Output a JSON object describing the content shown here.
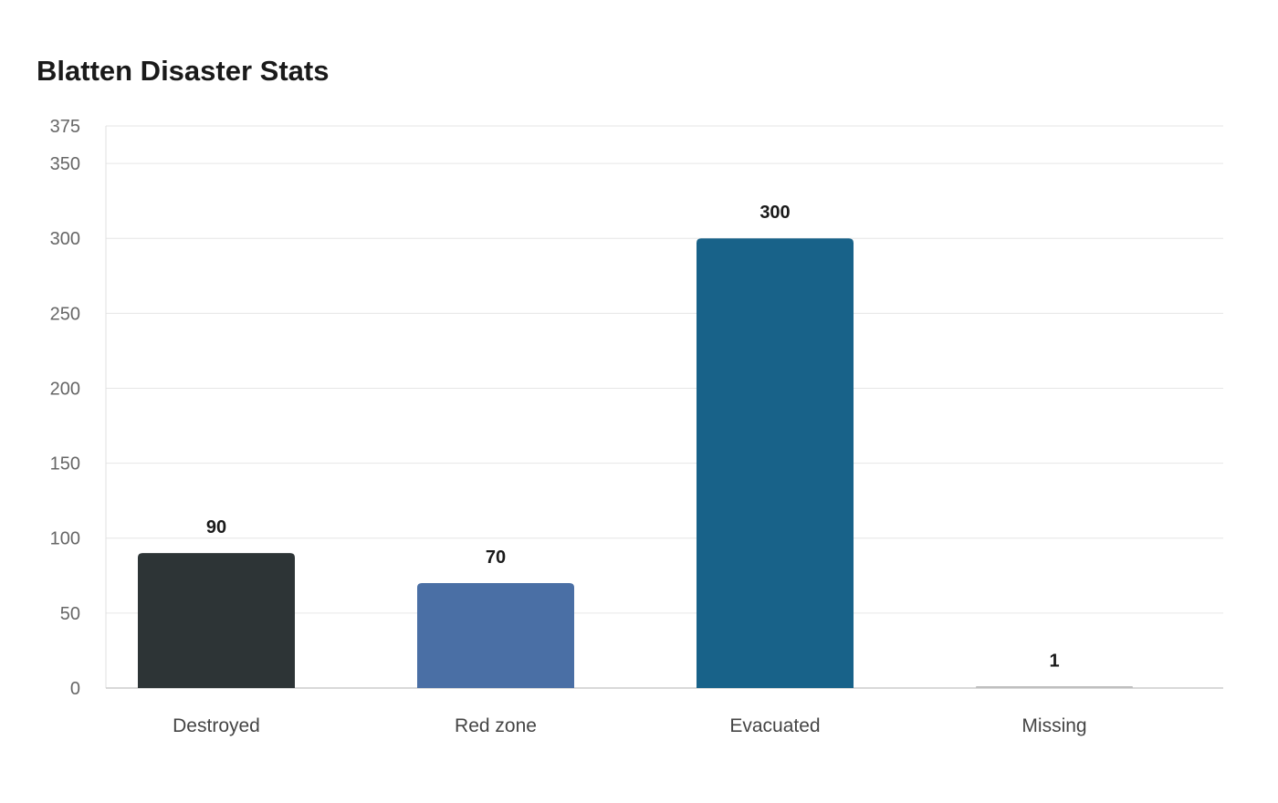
{
  "chart_data": {
    "type": "bar",
    "title": "Blatten Disaster Stats",
    "xlabel": "",
    "ylabel": "",
    "categories": [
      "Destroyed",
      "Red zone",
      "Evacuated",
      "Missing"
    ],
    "values": [
      90,
      70,
      300,
      1
    ],
    "data_labels": [
      "90",
      "70",
      "300",
      "1"
    ],
    "colors": [
      "#2d3436",
      "#4a6fa5",
      "#186289",
      "#bfbfbf"
    ],
    "ylim": [
      0,
      375
    ],
    "yticks": [
      0,
      50,
      100,
      150,
      200,
      250,
      300,
      350,
      375
    ],
    "grid": true,
    "legend": "none"
  }
}
